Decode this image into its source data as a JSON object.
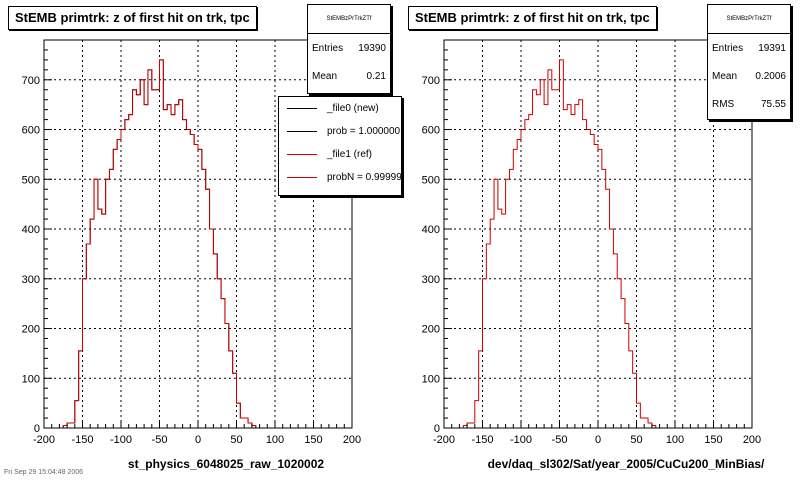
{
  "colors": {
    "frame": "#000000",
    "hist": "#cc0000",
    "grid": "#000000",
    "background": "#ffffff"
  },
  "status_text": "Fri Sep 29 15:04:48 2006",
  "charts": [
    {
      "title": "StEMB primtrk: z of first hit on trk, tpc",
      "stats": {
        "name": "StEMBzPrTrkZTf",
        "entries_label": "Entries",
        "entries": "19390",
        "mean_label": "Mean",
        "mean": "0.21"
      },
      "legend": [
        {
          "label": "_file0 (new)",
          "color": "#000000"
        },
        {
          "label": "prob = 1.000000",
          "color": "#000000"
        },
        {
          "label": "_file1 (ref)",
          "color": "#cc0000"
        },
        {
          "label": "probN = 0.99999",
          "color": "#cc0000"
        }
      ],
      "xlabel": "st_physics_6048025_raw_1020002"
    },
    {
      "title": "StEMB primtrk: z of first hit on trk, tpc",
      "stats": {
        "name": "StEMBzPrTrkZTf",
        "entries_label": "Entries",
        "entries": "19391",
        "mean_label": "Mean",
        "mean": "0.2006",
        "rms_label": "RMS",
        "rms": "75.55"
      },
      "xlabel": "dev/daq_sl302/Sat/year_2005/CuCu200_MinBias/"
    }
  ],
  "chart_data": [
    {
      "type": "bar",
      "title": "StEMB primtrk: z of first hit on trk, tpc",
      "xlabel": "st_physics_6048025_raw_1020002",
      "ylabel": "",
      "xlim": [
        -200,
        200
      ],
      "ylim": [
        0,
        780
      ],
      "xticks": [
        -200,
        -150,
        -100,
        -50,
        0,
        50,
        100,
        150,
        200
      ],
      "yticks": [
        0,
        100,
        200,
        300,
        400,
        500,
        600,
        700
      ],
      "grid": true,
      "legend_position": "top-right",
      "bin_width": 5,
      "bin_start": -200,
      "series": [
        {
          "name": "_file0 (new)",
          "color": "#000000",
          "values": [
            0,
            0,
            0,
            0,
            0,
            5,
            10,
            10,
            55,
            155,
            300,
            370,
            420,
            500,
            440,
            430,
            500,
            520,
            560,
            580,
            600,
            620,
            630,
            680,
            670,
            700,
            650,
            720,
            680,
            680,
            740,
            640,
            650,
            630,
            650,
            660,
            620,
            600,
            590,
            570,
            560,
            520,
            480,
            400,
            350,
            300,
            260,
            210,
            155,
            110,
            50,
            20,
            20,
            10,
            5,
            0,
            0,
            0,
            0,
            0,
            0,
            0,
            0,
            0,
            0,
            0,
            0,
            0,
            0,
            0,
            0,
            0,
            0,
            0,
            0,
            0,
            0,
            0,
            0,
            0
          ]
        },
        {
          "name": "_file1 (ref)",
          "color": "#cc0000",
          "values": [
            0,
            0,
            0,
            0,
            0,
            5,
            10,
            10,
            55,
            155,
            300,
            370,
            420,
            500,
            440,
            430,
            500,
            520,
            560,
            580,
            600,
            620,
            630,
            680,
            670,
            700,
            650,
            720,
            680,
            680,
            740,
            640,
            650,
            630,
            650,
            660,
            620,
            600,
            590,
            570,
            560,
            520,
            480,
            400,
            350,
            300,
            260,
            210,
            155,
            110,
            50,
            20,
            20,
            10,
            5,
            0,
            0,
            0,
            0,
            0,
            0,
            0,
            0,
            0,
            0,
            0,
            0,
            0,
            0,
            0,
            0,
            0,
            0,
            0,
            0,
            0,
            0,
            0,
            0,
            0
          ]
        }
      ]
    },
    {
      "type": "bar",
      "title": "StEMB primtrk: z of first hit on trk, tpc",
      "xlabel": "dev/daq_sl302/Sat/year_2005/CuCu200_MinBias/",
      "ylabel": "",
      "xlim": [
        -200,
        200
      ],
      "ylim": [
        0,
        780
      ],
      "xticks": [
        -200,
        -150,
        -100,
        -50,
        0,
        50,
        100,
        150,
        200
      ],
      "yticks": [
        0,
        100,
        200,
        300,
        400,
        500,
        600,
        700
      ],
      "grid": true,
      "bin_width": 5,
      "bin_start": -200,
      "series": [
        {
          "name": "",
          "color": "#cc0000",
          "values": [
            0,
            0,
            0,
            0,
            0,
            5,
            10,
            10,
            55,
            155,
            300,
            370,
            420,
            500,
            440,
            430,
            500,
            520,
            560,
            580,
            600,
            620,
            630,
            680,
            670,
            700,
            650,
            720,
            680,
            680,
            740,
            640,
            650,
            630,
            650,
            660,
            620,
            600,
            590,
            570,
            560,
            520,
            480,
            400,
            350,
            300,
            260,
            210,
            155,
            110,
            50,
            20,
            20,
            10,
            5,
            0,
            0,
            0,
            0,
            0,
            0,
            0,
            0,
            0,
            0,
            0,
            0,
            0,
            0,
            0,
            0,
            0,
            0,
            0,
            0,
            0,
            0,
            0,
            0,
            0
          ]
        }
      ]
    }
  ]
}
